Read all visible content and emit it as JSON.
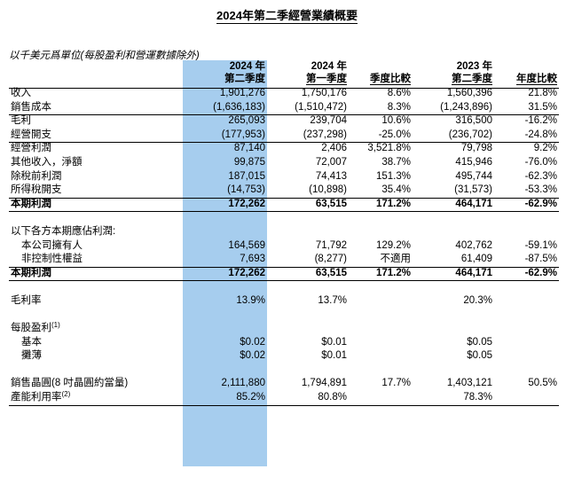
{
  "title": "2024年第二季經營業績概要",
  "unit_note": "以千美元爲單位(每股盈利和營運數據除外)",
  "headers": {
    "col1_a": "2024 年",
    "col1_b": "第二季度",
    "col2_a": "2024 年",
    "col2_b": "第一季度",
    "col3": "季度比較",
    "col4_a": "2023 年",
    "col4_b": "第二季度",
    "col5": "年度比較"
  },
  "rows": [
    {
      "label": "收入",
      "q2_2024": "1,901,276",
      "q1_2024": "1,750,176",
      "qoq": "8.6%",
      "q2_2023": "1,560,396",
      "yoy": "21.8%"
    },
    {
      "label": "銷售成本",
      "q2_2024": "(1,636,183)",
      "q1_2024": "(1,510,472)",
      "qoq": "8.3%",
      "q2_2023": "(1,243,896)",
      "yoy": "31.5%"
    },
    {
      "label": "毛利",
      "q2_2024": "265,093",
      "q1_2024": "239,704",
      "qoq": "10.6%",
      "q2_2023": "316,500",
      "yoy": "-16.2%"
    },
    {
      "label": "經營開支",
      "q2_2024": "(177,953)",
      "q1_2024": "(237,298)",
      "qoq": "-25.0%",
      "q2_2023": "(236,702)",
      "yoy": "-24.8%"
    },
    {
      "label": "經營利潤",
      "q2_2024": "87,140",
      "q1_2024": "2,406",
      "qoq": "3,521.8%",
      "q2_2023": "79,798",
      "yoy": "9.2%"
    },
    {
      "label": "其他收入，淨額",
      "q2_2024": "99,875",
      "q1_2024": "72,007",
      "qoq": "38.7%",
      "q2_2023": "415,946",
      "yoy": "-76.0%"
    },
    {
      "label": "除稅前利潤",
      "q2_2024": "187,015",
      "q1_2024": "74,413",
      "qoq": "151.3%",
      "q2_2023": "495,744",
      "yoy": "-62.3%"
    },
    {
      "label": "所得稅開支",
      "q2_2024": "(14,753)",
      "q1_2024": "(10,898)",
      "qoq": "35.4%",
      "q2_2023": "(31,573)",
      "yoy": "-53.3%"
    },
    {
      "label": "本期利潤",
      "q2_2024": "172,262",
      "q1_2024": "63,515",
      "qoq": "171.2%",
      "q2_2023": "464,171",
      "yoy": "-62.9%"
    }
  ],
  "attrib_heading": "以下各方本期應佔利潤:",
  "attrib_rows": [
    {
      "label": "本公司擁有人",
      "q2_2024": "164,569",
      "q1_2024": "71,792",
      "qoq": "129.2%",
      "q2_2023": "402,762",
      "yoy": "-59.1%"
    },
    {
      "label": "非控制性權益",
      "q2_2024": "7,693",
      "q1_2024": "(8,277)",
      "qoq": "不適用",
      "q2_2023": "61,409",
      "yoy": "-87.5%"
    },
    {
      "label": "本期利潤",
      "q2_2024": "172,262",
      "q1_2024": "63,515",
      "qoq": "171.2%",
      "q2_2023": "464,171",
      "yoy": "-62.9%"
    }
  ],
  "gross_margin": {
    "label": "毛利率",
    "q2_2024": "13.9%",
    "q1_2024": "13.7%",
    "q2_2023": "20.3%"
  },
  "eps": {
    "label": "每股盈利",
    "note": "(1)",
    "basic": {
      "label": "基本",
      "q2_2024": "$0.02",
      "q1_2024": "$0.01",
      "q2_2023": "$0.05"
    },
    "diluted": {
      "label": "攤薄",
      "q2_2024": "$0.02",
      "q1_2024": "$0.01",
      "q2_2023": "$0.05"
    }
  },
  "wafers": {
    "label": "銷售晶圓(8 吋晶圓約當量)",
    "q2_2024": "2,111,880",
    "q1_2024": "1,794,891",
    "qoq": "17.7%",
    "q2_2023": "1,403,121",
    "yoy": "50.5%"
  },
  "utilization": {
    "label": "產能利用率",
    "note": "(2)",
    "q2_2024": "85.2%",
    "q1_2024": "80.8%",
    "q2_2023": "78.3%"
  }
}
